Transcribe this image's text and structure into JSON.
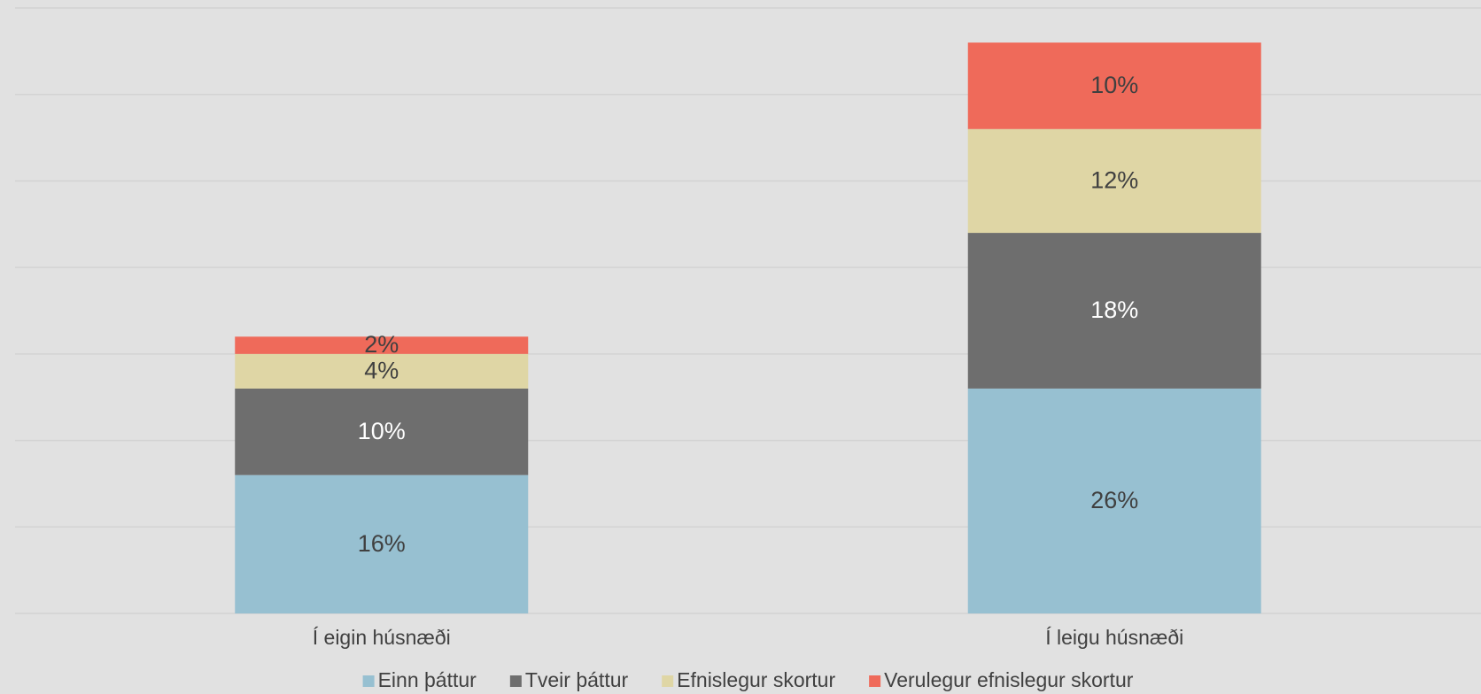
{
  "chart_data": {
    "type": "stacked_bar",
    "categories": [
      "Í eigin húsnæði",
      "Í leigu húsnæði"
    ],
    "series": [
      {
        "name": "Einn þáttur",
        "color": "#97c0d1",
        "values": [
          16,
          26
        ],
        "value_labels": [
          "16%",
          "26%"
        ]
      },
      {
        "name": "Tveir þáttur",
        "color": "#6e6e6e",
        "values": [
          10,
          18
        ],
        "value_labels": [
          "10%",
          "18%"
        ]
      },
      {
        "name": "Efnislegur skortur",
        "color": "#dfd6a5",
        "values": [
          4,
          12
        ],
        "value_labels": [
          "4%",
          "12%"
        ]
      },
      {
        "name": "Verulegur efnislegur skortur",
        "color": "#ef6a5a",
        "values": [
          2,
          10
        ],
        "value_labels": [
          "2%",
          "10%"
        ]
      }
    ],
    "ylim": [
      0,
      70
    ],
    "yticks": [
      0,
      10,
      20,
      30,
      40,
      50,
      60,
      70
    ],
    "grid": true,
    "legend": "bottom"
  }
}
